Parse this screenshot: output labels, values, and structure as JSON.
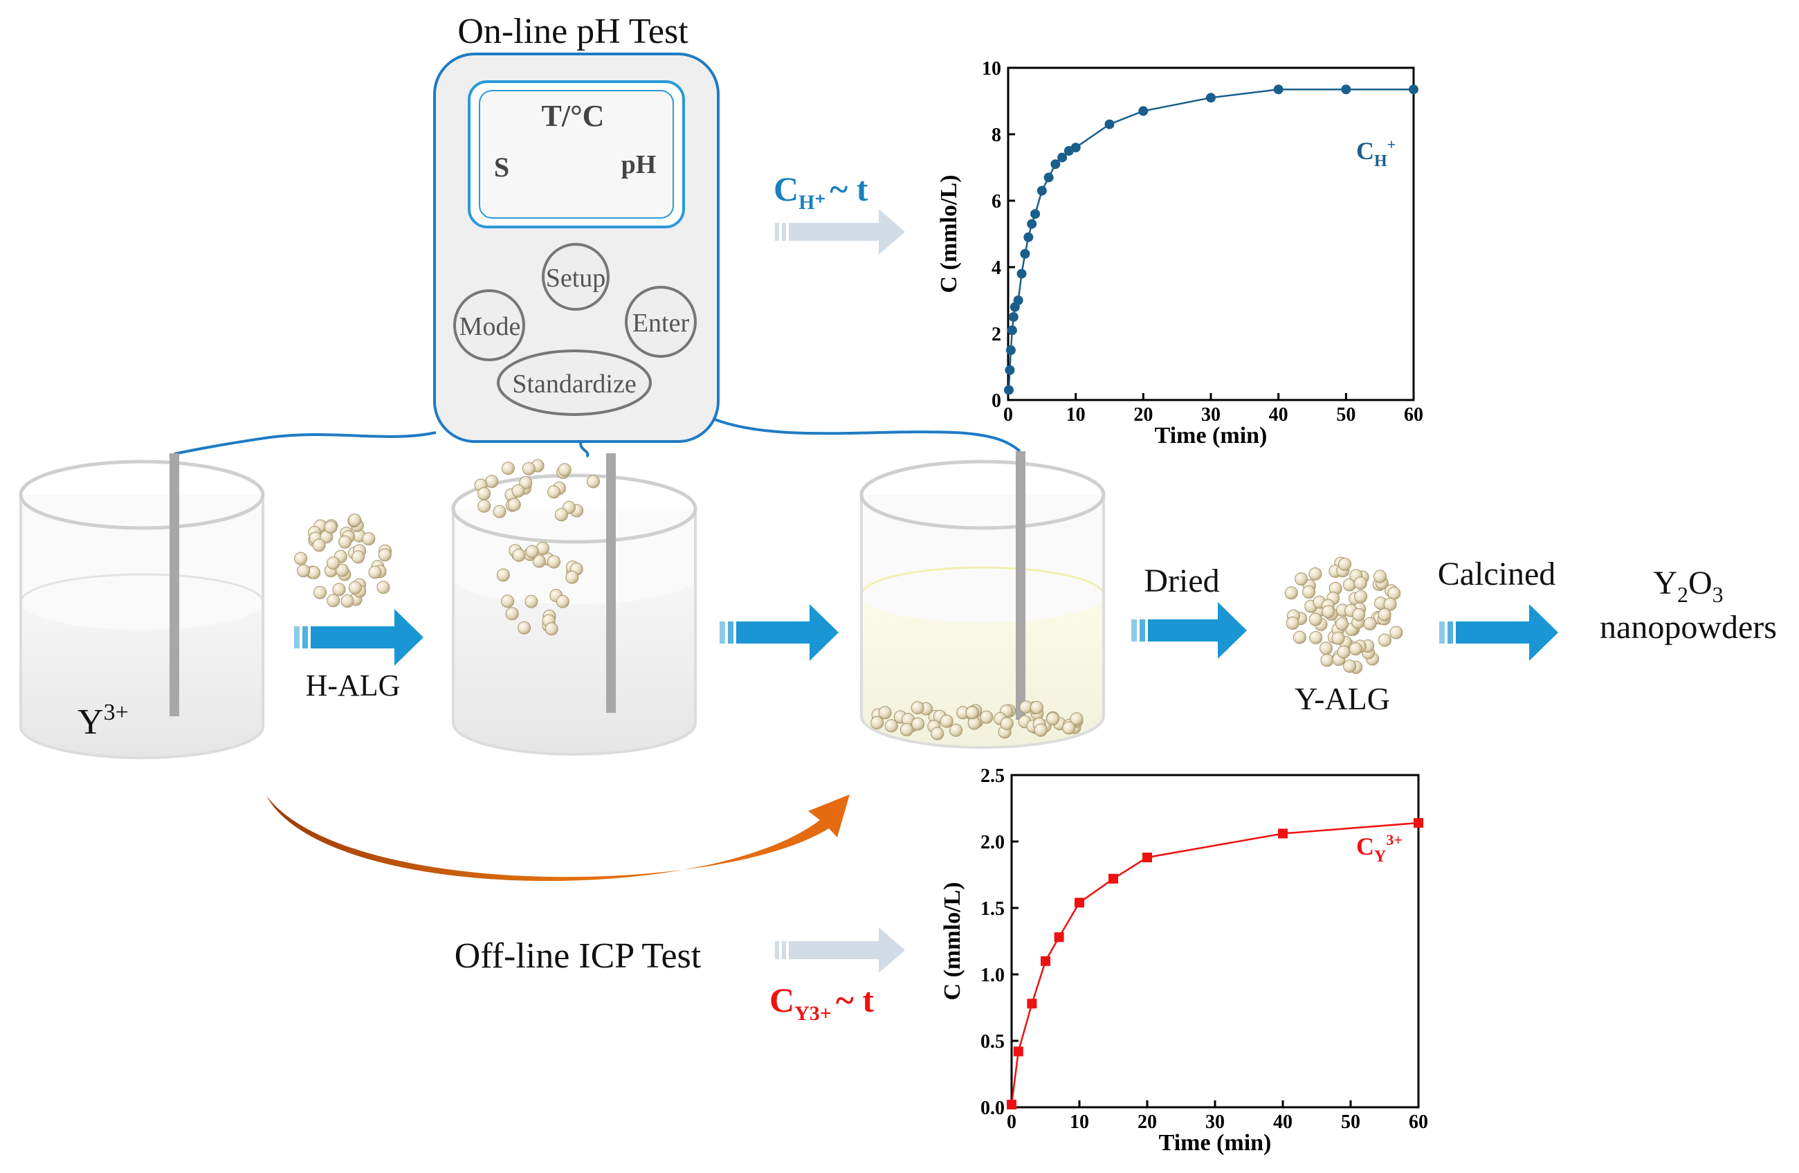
{
  "meter": {
    "title": "On-line pH Test",
    "screen": {
      "temp_label": "T/°C",
      "s_label": "S",
      "ph_label": "pH"
    },
    "buttons": {
      "setup": "Setup",
      "mode": "Mode",
      "enter": "Enter",
      "standardize": "Standardize"
    }
  },
  "process": {
    "y_ion": "Y",
    "y_ion_sup": "3+",
    "h_alg": "H-ALG",
    "dried": "Dried",
    "y_alg": "Y-ALG",
    "calcined": "Calcined",
    "product_prefix": "Y",
    "product_sub1": "2",
    "product_mid": "O",
    "product_sub2": "3",
    "product_line2": "nanopowders",
    "offline": "Off-line ICP Test"
  },
  "relations": {
    "h": {
      "base": "C",
      "sub": "H⁺",
      "tail": "~ t"
    },
    "y": {
      "base": "C",
      "sub": "Y3+",
      "tail": "~ t"
    }
  },
  "colors": {
    "blue_arrow": "#1a96d4",
    "gray_arrow": "#d2dce6",
    "h_series": "#1a5e8c",
    "y_series": "#ee1111",
    "orange": "#d8600a",
    "cable": "#1f7bc4"
  },
  "chart_data": [
    {
      "type": "line",
      "title": "",
      "xlabel": "Time (min)",
      "ylabel": "C (mmlo/L)",
      "xlim": [
        0,
        60
      ],
      "ylim": [
        0,
        10
      ],
      "xticks": [
        0,
        10,
        20,
        30,
        40,
        50,
        60
      ],
      "yticks": [
        0,
        2,
        4,
        6,
        8,
        10
      ],
      "series": [
        {
          "name": "CH+",
          "legend_base": "C",
          "legend_sub": "H",
          "legend_sup": "+",
          "marker": "circle",
          "x": [
            0.1,
            0.25,
            0.4,
            0.6,
            0.8,
            1,
            1.5,
            2,
            2.5,
            3,
            3.5,
            4,
            5,
            6,
            7,
            8,
            9,
            10,
            15,
            20,
            30,
            40,
            50,
            60
          ],
          "y": [
            0.3,
            0.9,
            1.5,
            2.1,
            2.5,
            2.8,
            3.0,
            3.8,
            4.4,
            4.9,
            5.3,
            5.6,
            6.3,
            6.7,
            7.1,
            7.3,
            7.5,
            7.6,
            8.3,
            8.7,
            9.1,
            9.35,
            9.35,
            9.35
          ]
        }
      ]
    },
    {
      "type": "line",
      "title": "",
      "xlabel": "Time (min)",
      "ylabel": "C (mmlo/L)",
      "xlim": [
        0,
        60
      ],
      "ylim": [
        0,
        2.5
      ],
      "xticks": [
        0,
        10,
        20,
        30,
        40,
        50,
        60
      ],
      "yticks": [
        "0.0",
        "0.5",
        "1.0",
        "1.5",
        "2.0",
        "2.5"
      ],
      "series": [
        {
          "name": "CY3+",
          "legend_base": "C",
          "legend_sub": "Y",
          "legend_sup": "3+",
          "marker": "square",
          "x": [
            0,
            1,
            3,
            5,
            7,
            10,
            15,
            20,
            40,
            60
          ],
          "y": [
            0.02,
            0.42,
            0.78,
            1.1,
            1.28,
            1.54,
            1.72,
            1.88,
            2.06,
            2.14
          ]
        }
      ]
    }
  ]
}
